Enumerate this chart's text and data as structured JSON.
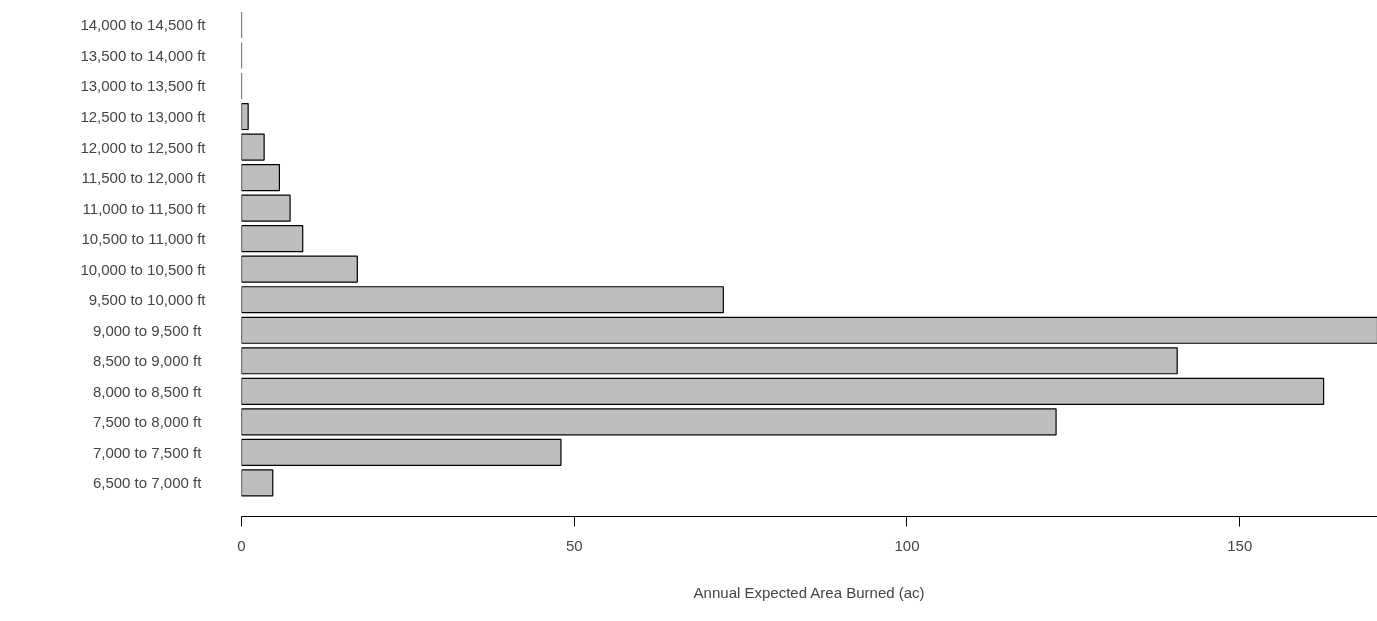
{
  "chart_data": {
    "type": "bar",
    "orientation": "horizontal",
    "xlabel": "Annual Expected Area Burned (ac)",
    "categories": [
      "14,000 to 14,500 ft",
      "13,500 to 14,000 ft",
      "13,000 to 13,500 ft",
      "12,500 to 13,000 ft",
      "12,000 to 12,500 ft",
      "11,500 to 12,000 ft",
      "11,000 to 11,500 ft",
      "10,500 to 11,000 ft",
      "10,000 to 10,500 ft",
      "9,500 to 10,000 ft",
      "9,000 to  9,500 ft",
      "8,500 to  9,000 ft",
      "8,000 to  8,500 ft",
      "7,500 to  8,000 ft",
      "7,000 to  7,500 ft",
      "6,500 to  7,000 ft"
    ],
    "values": [
      0,
      0,
      0,
      1.0,
      3.4,
      5.7,
      7.3,
      9.2,
      17.4,
      72.4,
      170.7,
      140.6,
      162.6,
      122.4,
      48,
      4.7
    ],
    "colors": [
      "#000000",
      "#000000",
      "#000000",
      "#bebebe",
      "#bebebe",
      "#bebebe",
      "#bebebe",
      "#bebebe",
      "#bebebe",
      "#bebebe",
      "#bebebe",
      "#bebebe",
      "#bebebe",
      "#bebebe",
      "#bebebe",
      "#bebebe"
    ],
    "xlim": [
      0,
      170.7
    ],
    "xticks": [
      0,
      50,
      100,
      150
    ],
    "grid": false
  }
}
